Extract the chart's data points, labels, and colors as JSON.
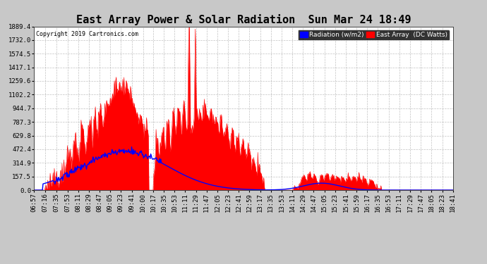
{
  "title": "East Array Power & Solar Radiation  Sun Mar 24 18:49",
  "copyright": "Copyright 2019 Cartronics.com",
  "legend_radiation": "Radiation (w/m2)",
  "legend_east": "East Array  (DC Watts)",
  "yticks": [
    0.0,
    157.5,
    314.9,
    472.4,
    629.8,
    787.3,
    944.7,
    1102.2,
    1259.6,
    1417.1,
    1574.5,
    1732.0,
    1889.4
  ],
  "ymax": 1889.4,
  "bg_color": "#c8c8c8",
  "plot_bg_color": "#ffffff",
  "grid_color": "#999999",
  "radiation_color": "#0000ff",
  "east_array_color": "#ff0000",
  "title_fontsize": 11,
  "tick_fontsize": 6.5,
  "xlabel_rotation": 90,
  "xtick_labels": [
    "06:57",
    "07:16",
    "07:35",
    "07:53",
    "08:11",
    "08:29",
    "08:47",
    "09:05",
    "09:23",
    "09:41",
    "10:00",
    "10:17",
    "10:35",
    "10:53",
    "11:11",
    "11:29",
    "11:47",
    "12:05",
    "12:23",
    "12:41",
    "12:59",
    "13:17",
    "13:35",
    "13:53",
    "14:11",
    "14:29",
    "14:47",
    "15:05",
    "15:23",
    "15:41",
    "15:59",
    "16:17",
    "16:35",
    "16:53",
    "17:11",
    "17:29",
    "17:47",
    "18:05",
    "18:23",
    "18:41"
  ]
}
